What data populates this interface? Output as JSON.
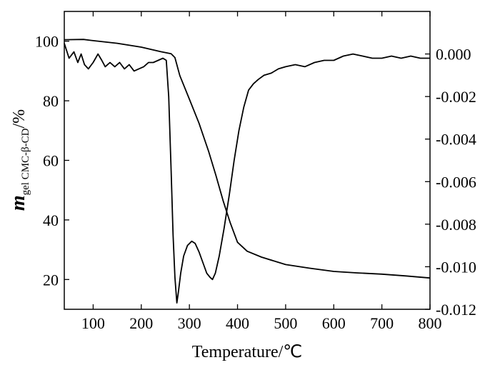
{
  "chart_data": {
    "type": "line",
    "xlabel": "Temperature/℃",
    "ylabel_left": {
      "italic": "m",
      "subscript": "gel CMC-β-CD",
      "suffix": "/%"
    },
    "xlim": [
      40,
      800
    ],
    "ylim_left": [
      10,
      110
    ],
    "ylim_right": [
      -0.012,
      0.002
    ],
    "xticks": [
      100,
      200,
      300,
      400,
      500,
      600,
      700,
      800
    ],
    "yticks_left": [
      20,
      40,
      60,
      80,
      100
    ],
    "yticks_right": [
      "0.000",
      "-0.002",
      "-0.004",
      "-0.006",
      "-0.008",
      "-0.010",
      "-0.012"
    ],
    "grid": false,
    "series": [
      {
        "axis": "left",
        "points": [
          [
            40,
            100.5
          ],
          [
            80,
            100.6
          ],
          [
            100,
            100.2
          ],
          [
            150,
            99.3
          ],
          [
            200,
            98.0
          ],
          [
            240,
            96.5
          ],
          [
            262,
            95.8
          ],
          [
            270,
            94.5
          ],
          [
            280,
            88.5
          ],
          [
            300,
            80.5
          ],
          [
            320,
            72.5
          ],
          [
            340,
            63.0
          ],
          [
            355,
            55.0
          ],
          [
            370,
            46.5
          ],
          [
            385,
            39.0
          ],
          [
            400,
            32.5
          ],
          [
            420,
            29.5
          ],
          [
            450,
            27.5
          ],
          [
            500,
            25.0
          ],
          [
            550,
            23.8
          ],
          [
            600,
            22.7
          ],
          [
            650,
            22.2
          ],
          [
            700,
            21.8
          ],
          [
            750,
            21.2
          ],
          [
            800,
            20.5
          ]
        ]
      },
      {
        "axis": "right",
        "points": [
          [
            40,
            0.0005
          ],
          [
            50,
            -0.0002
          ],
          [
            60,
            0.0001
          ],
          [
            68,
            -0.0004
          ],
          [
            75,
            0.0
          ],
          [
            82,
            -0.0005
          ],
          [
            90,
            -0.0007
          ],
          [
            100,
            -0.0004
          ],
          [
            110,
            0.0
          ],
          [
            118,
            -0.0003
          ],
          [
            125,
            -0.0006
          ],
          [
            135,
            -0.0004
          ],
          [
            145,
            -0.0006
          ],
          [
            155,
            -0.0004
          ],
          [
            165,
            -0.0007
          ],
          [
            175,
            -0.0005
          ],
          [
            185,
            -0.0008
          ],
          [
            195,
            -0.0007
          ],
          [
            205,
            -0.0006
          ],
          [
            215,
            -0.0004
          ],
          [
            225,
            -0.0004
          ],
          [
            235,
            -0.0003
          ],
          [
            245,
            -0.0002
          ],
          [
            252,
            -0.0003
          ],
          [
            257,
            -0.002
          ],
          [
            262,
            -0.0055
          ],
          [
            266,
            -0.0085
          ],
          [
            270,
            -0.0105
          ],
          [
            274,
            -0.0117
          ],
          [
            277,
            -0.0112
          ],
          [
            282,
            -0.0103
          ],
          [
            288,
            -0.0095
          ],
          [
            296,
            -0.009
          ],
          [
            305,
            -0.0088
          ],
          [
            312,
            -0.0089
          ],
          [
            320,
            -0.0093
          ],
          [
            328,
            -0.0098
          ],
          [
            336,
            -0.0103
          ],
          [
            343,
            -0.0105
          ],
          [
            348,
            -0.0106
          ],
          [
            354,
            -0.0103
          ],
          [
            362,
            -0.0095
          ],
          [
            372,
            -0.0082
          ],
          [
            383,
            -0.0066
          ],
          [
            393,
            -0.005
          ],
          [
            403,
            -0.0036
          ],
          [
            413,
            -0.0025
          ],
          [
            423,
            -0.0017
          ],
          [
            433,
            -0.0014
          ],
          [
            443,
            -0.0012
          ],
          [
            455,
            -0.001
          ],
          [
            470,
            -0.0009
          ],
          [
            485,
            -0.0007
          ],
          [
            500,
            -0.0006
          ],
          [
            520,
            -0.0005
          ],
          [
            540,
            -0.0006
          ],
          [
            560,
            -0.0004
          ],
          [
            580,
            -0.0003
          ],
          [
            600,
            -0.0003
          ],
          [
            620,
            -0.0001
          ],
          [
            640,
            0.0
          ],
          [
            660,
            -0.0001
          ],
          [
            680,
            -0.0002
          ],
          [
            700,
            -0.0002
          ],
          [
            720,
            -0.0001
          ],
          [
            740,
            -0.0002
          ],
          [
            760,
            -0.0001
          ],
          [
            780,
            -0.0002
          ],
          [
            800,
            -0.0002
          ]
        ]
      }
    ]
  }
}
